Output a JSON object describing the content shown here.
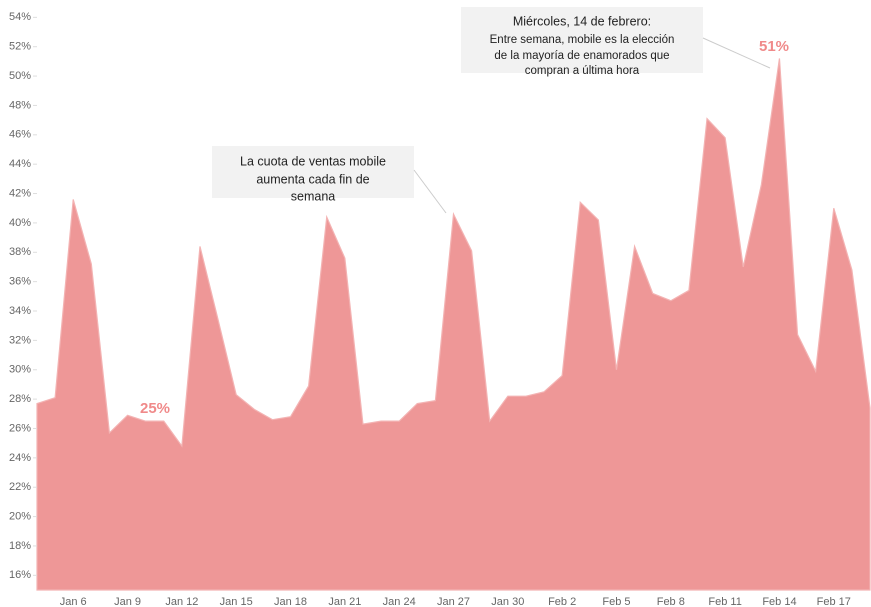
{
  "chart_data": {
    "type": "area",
    "color": "#ee9797",
    "ylim": [
      15,
      54.5
    ],
    "yticks": [
      {
        "value": 16,
        "label": "16%"
      },
      {
        "value": 18,
        "label": "18%"
      },
      {
        "value": 20,
        "label": "20%"
      },
      {
        "value": 22,
        "label": "22%"
      },
      {
        "value": 24,
        "label": "24%"
      },
      {
        "value": 26,
        "label": "26%"
      },
      {
        "value": 28,
        "label": "28%"
      },
      {
        "value": 30,
        "label": "30%"
      },
      {
        "value": 32,
        "label": "32%"
      },
      {
        "value": 34,
        "label": "34%"
      },
      {
        "value": 36,
        "label": "36%"
      },
      {
        "value": 38,
        "label": "38%"
      },
      {
        "value": 40,
        "label": "40%"
      },
      {
        "value": 42,
        "label": "42%"
      },
      {
        "value": 44,
        "label": "44%"
      },
      {
        "value": 46,
        "label": "46%"
      },
      {
        "value": 48,
        "label": "48%"
      },
      {
        "value": 50,
        "label": "50%"
      },
      {
        "value": 52,
        "label": "52%"
      },
      {
        "value": 54,
        "label": "54%"
      }
    ],
    "categories": [
      null,
      null,
      "Jan 6",
      null,
      null,
      "Jan 9",
      null,
      null,
      "Jan 12",
      null,
      null,
      "Jan 15",
      null,
      null,
      "Jan 18",
      null,
      null,
      "Jan 21",
      null,
      null,
      "Jan 24",
      null,
      null,
      "Jan 27",
      null,
      null,
      "Jan 30",
      null,
      null,
      "Feb 2",
      null,
      null,
      "Feb 5",
      null,
      null,
      "Feb 8",
      null,
      null,
      "Feb 11",
      null,
      null,
      "Feb 14",
      null,
      null,
      "Feb 17",
      null,
      null
    ],
    "values": [
      27.7,
      28.1,
      41.6,
      37.2,
      25.7,
      26.9,
      26.5,
      26.5,
      24.8,
      38.4,
      33.4,
      28.3,
      27.3,
      26.6,
      26.8,
      28.9,
      40.4,
      37.6,
      26.3,
      26.5,
      26.5,
      27.7,
      27.9,
      40.6,
      38.1,
      26.5,
      28.2,
      28.2,
      28.5,
      29.6,
      41.4,
      40.2,
      30.0,
      38.4,
      35.2,
      34.7,
      35.4,
      47.1,
      45.8,
      37.0,
      42.6,
      51.2,
      32.4,
      29.9,
      41.0,
      36.8,
      27.4
    ],
    "annotations": [
      "25%",
      "51%"
    ],
    "callouts": [
      {
        "lines": [
          "La cuota de ventas mobile",
          "aumenta cada fin de",
          "semana"
        ]
      },
      {
        "title": "Miércoles, 14 de febrero:",
        "lines": [
          "Entre semana, mobile es la elección",
          "de la mayoría de enamorados que",
          "compran a última hora"
        ]
      }
    ]
  }
}
